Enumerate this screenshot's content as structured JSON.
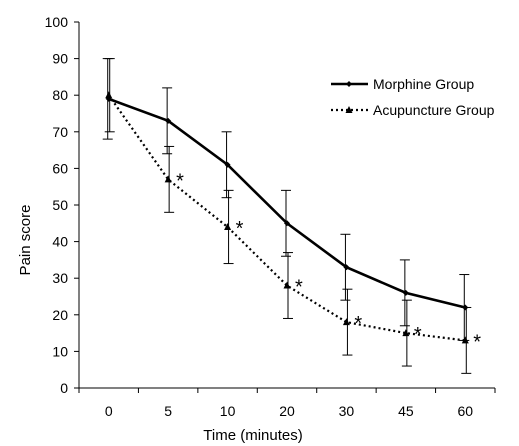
{
  "chart_data": {
    "type": "line",
    "title": "",
    "xlabel": "Time (minutes)",
    "ylabel": "Pain score",
    "categories": [
      "0",
      "5",
      "10",
      "20",
      "30",
      "45",
      "60"
    ],
    "ylim": [
      0,
      100
    ],
    "yticks": [
      0,
      10,
      20,
      30,
      40,
      50,
      60,
      70,
      80,
      90,
      100
    ],
    "grid": false,
    "legend_position": "right",
    "series": [
      {
        "name": "Morphine Group",
        "style": "solid",
        "marker": "diamond",
        "values": [
          79,
          73,
          61,
          45,
          33,
          26,
          22
        ],
        "error": [
          11,
          9,
          9,
          9,
          9,
          9,
          9
        ],
        "color": "#000000"
      },
      {
        "name": "Acupuncture Group",
        "style": "dotted",
        "marker": "triangle",
        "values": [
          80,
          57,
          44,
          28,
          18,
          15,
          13
        ],
        "error": [
          10,
          9,
          10,
          9,
          9,
          9,
          9
        ],
        "color": "#000000"
      }
    ],
    "annotations": [
      {
        "category": "5",
        "text": "*"
      },
      {
        "category": "10",
        "text": "*"
      },
      {
        "category": "20",
        "text": "*"
      },
      {
        "category": "30",
        "text": "*"
      },
      {
        "category": "45",
        "text": "*"
      },
      {
        "category": "60",
        "text": "*"
      }
    ]
  }
}
